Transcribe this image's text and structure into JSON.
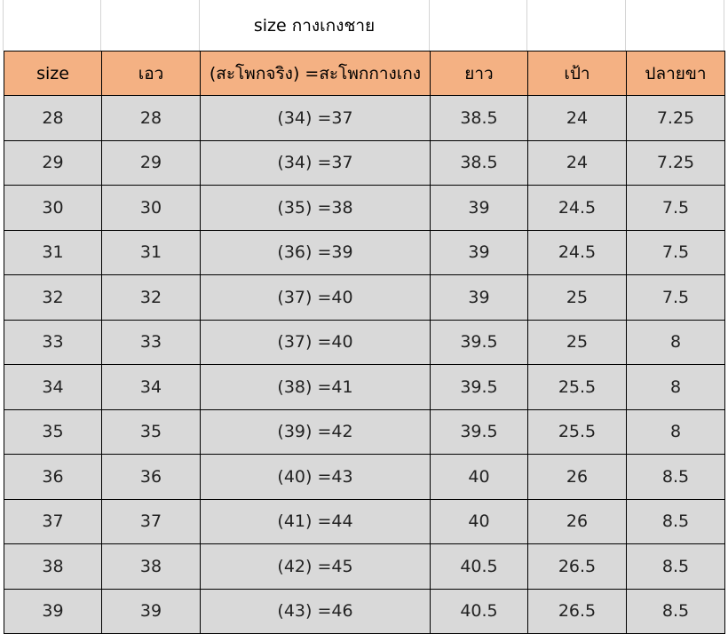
{
  "title": "size กางเกงชาย",
  "colors": {
    "header_bg": "#F4B183",
    "row_bg": "#D9D9D9"
  },
  "columns": [
    "size",
    "เอว",
    "(สะโพกจริง) =สะโพกกางเกง",
    "ยาว",
    "เป้า",
    "ปลายขา"
  ],
  "rows": [
    [
      "28",
      "28",
      "(34) =37",
      "38.5",
      "24",
      "7.25"
    ],
    [
      "29",
      "29",
      "(34) =37",
      "38.5",
      "24",
      "7.25"
    ],
    [
      "30",
      "30",
      "(35)  =38",
      "39",
      "24.5",
      "7.5"
    ],
    [
      "31",
      "31",
      "(36)  =39",
      "39",
      "24.5",
      "7.5"
    ],
    [
      "32",
      "32",
      "(37) =40",
      "39",
      "25",
      "7.5"
    ],
    [
      "33",
      "33",
      "(37) =40",
      "39.5",
      "25",
      "8"
    ],
    [
      "34",
      "34",
      "(38) =41",
      "39.5",
      "25.5",
      "8"
    ],
    [
      "35",
      "35",
      "(39) =42",
      "39.5",
      "25.5",
      "8"
    ],
    [
      "36",
      "36",
      "(40) =43",
      "40",
      "26",
      "8.5"
    ],
    [
      "37",
      "37",
      "(41) =44",
      "40",
      "26",
      "8.5"
    ],
    [
      "38",
      "38",
      "(42) =45",
      "40.5",
      "26.5",
      "8.5"
    ],
    [
      "39",
      "39",
      "(43) =46",
      "40.5",
      "26.5",
      "8.5"
    ]
  ]
}
